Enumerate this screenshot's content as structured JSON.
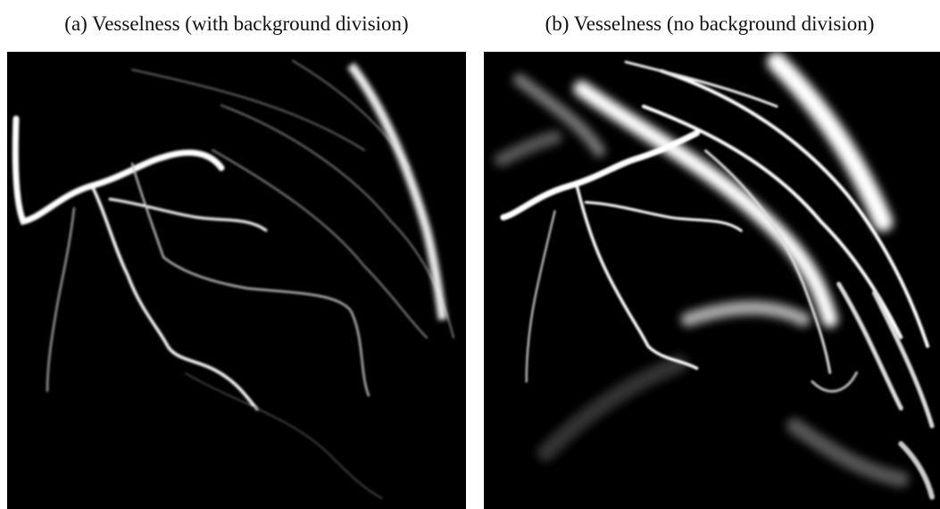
{
  "figure": {
    "panels": [
      {
        "caption": "(a) Vesselness (with background division)"
      },
      {
        "caption": "(b) Vesselness (no background division)"
      }
    ]
  }
}
